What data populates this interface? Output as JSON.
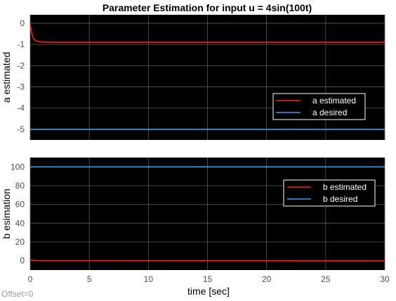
{
  "chart_data": [
    {
      "type": "line",
      "title": "Parameter Estimation for input u = 4sin(100t)",
      "xlabel": "",
      "ylabel": "a estimated",
      "xlim": [
        0,
        30
      ],
      "ylim": [
        -5.5,
        0.4
      ],
      "x_ticks": [
        0,
        5,
        10,
        15,
        20,
        25,
        30
      ],
      "y_ticks": [
        0,
        -1,
        -2,
        -3,
        -4,
        -5
      ],
      "grid": true,
      "legend_position": "right",
      "series": [
        {
          "name": "a estimated",
          "color": "#ff1a1a",
          "points": [
            [
              0,
              0
            ],
            [
              0.05,
              -0.2
            ],
            [
              0.1,
              -0.4
            ],
            [
              0.2,
              -0.6
            ],
            [
              0.3,
              -0.74
            ],
            [
              0.5,
              -0.83
            ],
            [
              0.8,
              -0.87
            ],
            [
              1.2,
              -0.89
            ],
            [
              2,
              -0.9
            ],
            [
              30,
              -0.9
            ]
          ]
        },
        {
          "name": "a desired",
          "color": "#3d9be9",
          "points": [
            [
              0,
              -5
            ],
            [
              30,
              -5
            ]
          ]
        }
      ]
    },
    {
      "type": "line",
      "title": "",
      "xlabel": "time [sec]",
      "ylabel": "b esimation",
      "xlim": [
        0,
        30
      ],
      "ylim": [
        -10,
        110
      ],
      "x_ticks": [
        0,
        5,
        10,
        15,
        20,
        25,
        30
      ],
      "y_ticks": [
        0,
        20,
        40,
        60,
        80,
        100
      ],
      "grid": true,
      "legend_position": "top-right",
      "series": [
        {
          "name": "b estimated",
          "color": "#ff1a1a",
          "points": [
            [
              0,
              0.5
            ],
            [
              0.5,
              0.2
            ],
            [
              1,
              0
            ],
            [
              30,
              -0.2
            ]
          ]
        },
        {
          "name": "b desired",
          "color": "#3d9be9",
          "points": [
            [
              0,
              100
            ],
            [
              30,
              100
            ]
          ]
        }
      ]
    }
  ],
  "footer": {
    "offset_text": "Offset=0"
  },
  "colors": {
    "axes_background": "#000000",
    "grid": "#5a5a5a",
    "figure_background": "#ffffff"
  }
}
